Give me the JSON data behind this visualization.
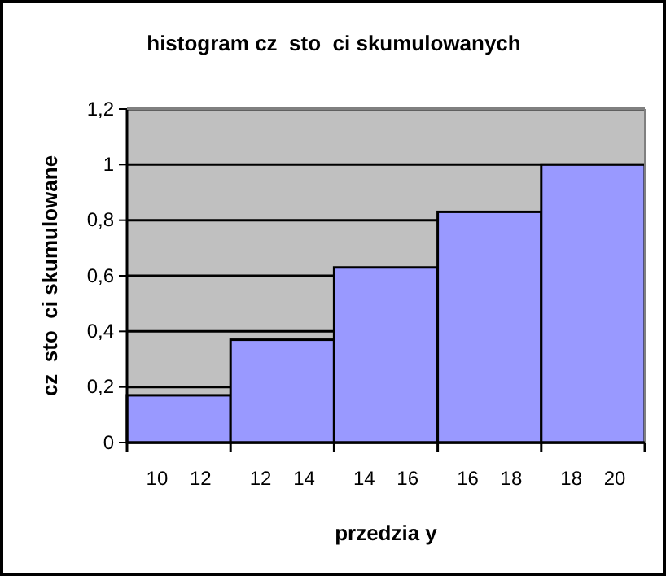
{
  "chart_data": {
    "type": "bar",
    "title": "histogram cz  sto  ci skumulowanych",
    "xlabel": "przedzia y",
    "ylabel": "cz  sto  ci skumulowane",
    "categories": [
      "10    12",
      "12    14",
      "14    16",
      "16    18",
      "18    20"
    ],
    "values": [
      0.17,
      0.37,
      0.63,
      0.83,
      1
    ],
    "color": "#9999ff",
    "ylim": [
      0,
      1.2
    ],
    "yticks": [
      0,
      {
        "value": 0.2,
        "label": "0,2"
      },
      {
        "value": 0.4,
        "label": "0,4"
      },
      {
        "value": 0.6,
        "label": "0,6"
      },
      {
        "value": 0.8,
        "label": "0,8"
      },
      1,
      {
        "value": 1.2,
        "label": "1,2"
      }
    ],
    "grid": "y"
  }
}
